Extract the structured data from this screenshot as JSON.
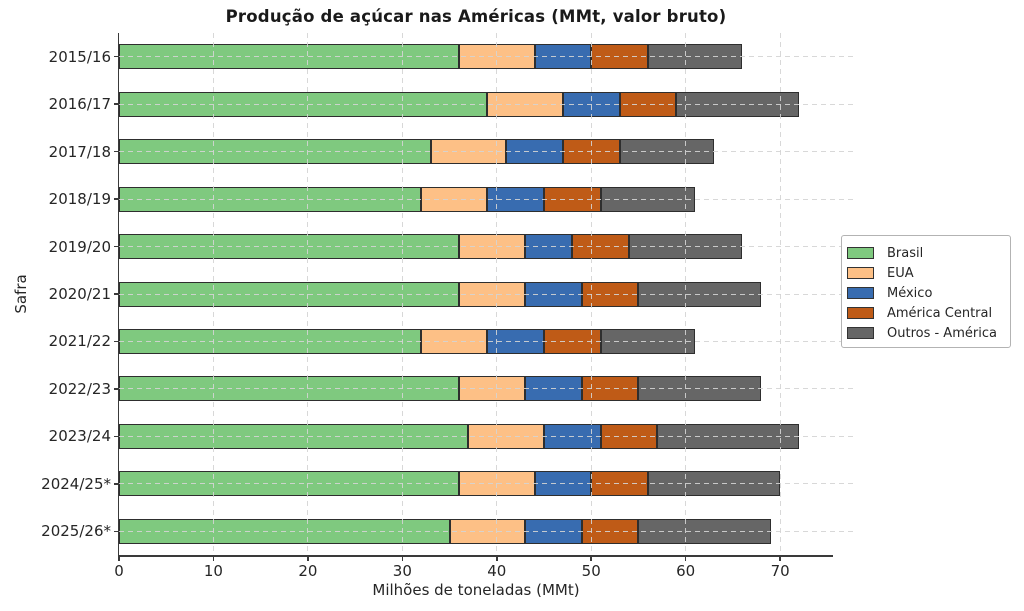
{
  "chart_data": {
    "type": "bar",
    "orientation": "horizontal",
    "stacked": true,
    "title": "Produção de açúcar nas Américas (MMt, valor bruto)",
    "xlabel": "Milhões de toneladas (MMt)",
    "ylabel": "Safra",
    "categories": [
      "2015/16",
      "2016/17",
      "2017/18",
      "2018/19",
      "2019/20",
      "2020/21",
      "2021/22",
      "2022/23",
      "2023/24",
      "2024/25*",
      "2025/26*"
    ],
    "series": [
      {
        "name": "Brasil",
        "color": "#7fc97f",
        "values": [
          36,
          39,
          33,
          32,
          36,
          36,
          32,
          36,
          37,
          36,
          35
        ]
      },
      {
        "name": "EUA",
        "color": "#fdc086",
        "values": [
          8,
          8,
          8,
          7,
          7,
          7,
          7,
          7,
          8,
          8,
          8
        ]
      },
      {
        "name": "México",
        "color": "#386cb0",
        "values": [
          6,
          6,
          6,
          6,
          5,
          6,
          6,
          6,
          6,
          6,
          6
        ]
      },
      {
        "name": "América Central",
        "color": "#bf5b17",
        "values": [
          6,
          6,
          6,
          6,
          6,
          6,
          6,
          6,
          6,
          6,
          6
        ]
      },
      {
        "name": "Outros - América",
        "color": "#666666",
        "values": [
          10,
          13,
          10,
          10,
          12,
          13,
          10,
          13,
          15,
          14,
          14
        ]
      }
    ],
    "totals": [
      66,
      72,
      63,
      61,
      66,
      68,
      61,
      68,
      72,
      70,
      69
    ],
    "xlim": [
      0,
      75.6
    ],
    "xticks": [
      0,
      10,
      20,
      30,
      40,
      50,
      60,
      70
    ],
    "xtick_labels": [
      "0",
      "10",
      "20",
      "30",
      "40",
      "50",
      "60",
      "70"
    ],
    "grid": true,
    "grid_style": "dashed",
    "legend_position": "outside-center-right",
    "style": {
      "bar_edge_color": "#2e2e2e",
      "grid_color": "#d4d4d4",
      "spine_color": "#3a3a3a",
      "text_color": "#262626",
      "title_color": "#1a1a1a",
      "legend_border_color": "#b3b3b3",
      "background": "#ffffff"
    }
  }
}
